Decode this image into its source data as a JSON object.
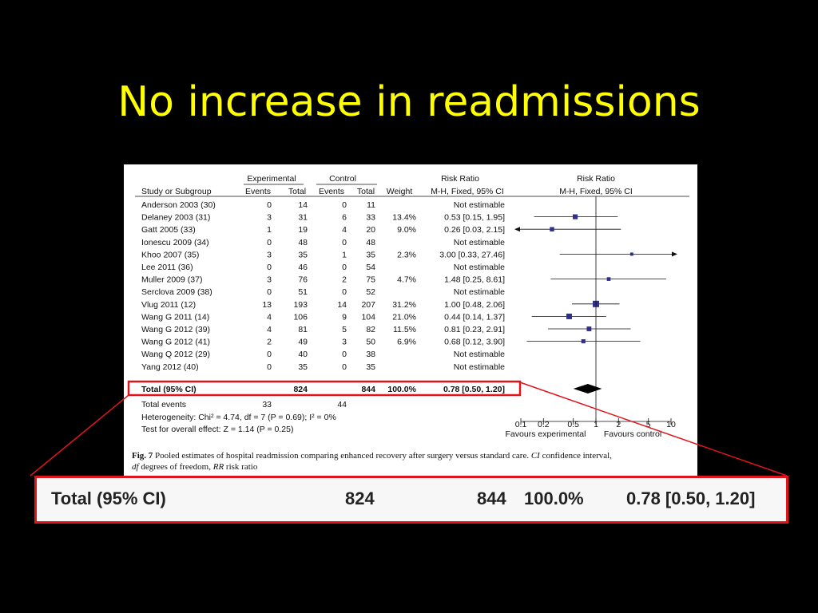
{
  "slide": {
    "title": "No increase in readmissions"
  },
  "figure": {
    "headers": {
      "experimental": "Experimental",
      "control": "Control",
      "risk_ratio": "Risk Ratio",
      "plot_risk_ratio": "Risk Ratio",
      "study": "Study or Subgroup",
      "events": "Events",
      "total": "Total",
      "events2": "Events",
      "total2": "Total",
      "weight": "Weight",
      "method": "M-H, Fixed, 95% CI",
      "plot_method": "M-H, Fixed, 95% CI"
    },
    "summary": {
      "label": "Total (95% CI)",
      "exp_total": "824",
      "ctl_total": "844",
      "weight": "100.0%",
      "rr": "0.78 [0.50, 1.20]"
    },
    "total_events": {
      "label": "Total events",
      "exp": "33",
      "ctl": "44"
    },
    "heterogeneity": "Heterogeneity: Chi² = 4.74, df = 7 (P = 0.69); I² = 0%",
    "overall_effect": "Test for overall effect: Z = 1.14 (P = 0.25)",
    "favours_left": "Favours experimental",
    "favours_right": "Favours control",
    "caption_line1_fig": "Fig. 7",
    "caption_line1": "Pooled estimates of hospital readmission comparing enhanced recovery after surgery versus standard care.",
    "caption_line1_ci": "CI",
    "caption_line1_end": "confidence interval,",
    "caption_line2_df": "df",
    "caption_line2_mid": "degrees of freedom,",
    "caption_line2_rr": "RR",
    "caption_line2_end": "risk ratio"
  },
  "chart_data": {
    "type": "forest",
    "xscale": "log",
    "xlim": [
      0.1,
      10
    ],
    "xticks": [
      "0.1",
      "0.2",
      "0.5",
      "1",
      "2",
      "5",
      "10"
    ],
    "studies": [
      {
        "name": "Anderson 2003 (30)",
        "exp_events": "0",
        "exp_total": "14",
        "ctl_events": "0",
        "ctl_total": "11",
        "weight": "",
        "rr_text": "Not estimable",
        "rr": null,
        "lo": null,
        "hi": null
      },
      {
        "name": "Delaney 2003 (31)",
        "exp_events": "3",
        "exp_total": "31",
        "ctl_events": "6",
        "ctl_total": "33",
        "weight": "13.4%",
        "rr_text": "0.53 [0.15, 1.95]",
        "rr": 0.53,
        "lo": 0.15,
        "hi": 1.95
      },
      {
        "name": "Gatt 2005 (33)",
        "exp_events": "1",
        "exp_total": "19",
        "ctl_events": "4",
        "ctl_total": "20",
        "weight": "9.0%",
        "rr_text": "0.26 [0.03, 2.15]",
        "rr": 0.26,
        "lo": 0.03,
        "hi": 2.15
      },
      {
        "name": "Ionescu 2009 (34)",
        "exp_events": "0",
        "exp_total": "48",
        "ctl_events": "0",
        "ctl_total": "48",
        "weight": "",
        "rr_text": "Not estimable",
        "rr": null,
        "lo": null,
        "hi": null
      },
      {
        "name": "Khoo 2007 (35)",
        "exp_events": "3",
        "exp_total": "35",
        "ctl_events": "1",
        "ctl_total": "35",
        "weight": "2.3%",
        "rr_text": "3.00 [0.33, 27.46]",
        "rr": 3.0,
        "lo": 0.33,
        "hi": 27.46
      },
      {
        "name": "Lee 2011 (36)",
        "exp_events": "0",
        "exp_total": "46",
        "ctl_events": "0",
        "ctl_total": "54",
        "weight": "",
        "rr_text": "Not estimable",
        "rr": null,
        "lo": null,
        "hi": null
      },
      {
        "name": "Muller 2009 (37)",
        "exp_events": "3",
        "exp_total": "76",
        "ctl_events": "2",
        "ctl_total": "75",
        "weight": "4.7%",
        "rr_text": "1.48 [0.25, 8.61]",
        "rr": 1.48,
        "lo": 0.25,
        "hi": 8.61
      },
      {
        "name": "Serclova 2009 (38)",
        "exp_events": "0",
        "exp_total": "51",
        "ctl_events": "0",
        "ctl_total": "52",
        "weight": "",
        "rr_text": "Not estimable",
        "rr": null,
        "lo": null,
        "hi": null
      },
      {
        "name": "Vlug 2011 (12)",
        "exp_events": "13",
        "exp_total": "193",
        "ctl_events": "14",
        "ctl_total": "207",
        "weight": "31.2%",
        "rr_text": "1.00 [0.48, 2.06]",
        "rr": 1.0,
        "lo": 0.48,
        "hi": 2.06
      },
      {
        "name": "Wang G 2011 (14)",
        "exp_events": "4",
        "exp_total": "106",
        "ctl_events": "9",
        "ctl_total": "104",
        "weight": "21.0%",
        "rr_text": "0.44 [0.14, 1.37]",
        "rr": 0.44,
        "lo": 0.14,
        "hi": 1.37
      },
      {
        "name": "Wang G 2012 (39)",
        "exp_events": "4",
        "exp_total": "81",
        "ctl_events": "5",
        "ctl_total": "82",
        "weight": "11.5%",
        "rr_text": "0.81 [0.23, 2.91]",
        "rr": 0.81,
        "lo": 0.23,
        "hi": 2.91
      },
      {
        "name": "Wang G 2012 (41)",
        "exp_events": "2",
        "exp_total": "49",
        "ctl_events": "3",
        "ctl_total": "50",
        "weight": "6.9%",
        "rr_text": "0.68 [0.12, 3.90]",
        "rr": 0.68,
        "lo": 0.12,
        "hi": 3.9
      },
      {
        "name": "Wang Q 2012 (29)",
        "exp_events": "0",
        "exp_total": "40",
        "ctl_events": "0",
        "ctl_total": "38",
        "weight": "",
        "rr_text": "Not estimable",
        "rr": null,
        "lo": null,
        "hi": null
      },
      {
        "name": "Yang 2012 (40)",
        "exp_events": "0",
        "exp_total": "35",
        "ctl_events": "0",
        "ctl_total": "35",
        "weight": "",
        "rr_text": "Not estimable",
        "rr": null,
        "lo": null,
        "hi": null
      }
    ],
    "pooled": {
      "rr": 0.78,
      "lo": 0.5,
      "hi": 1.2
    }
  },
  "colors": {
    "title": "#ffff00",
    "marker": "#2e2e8f",
    "highlight": "#e0141b",
    "diamond": "#000000"
  }
}
